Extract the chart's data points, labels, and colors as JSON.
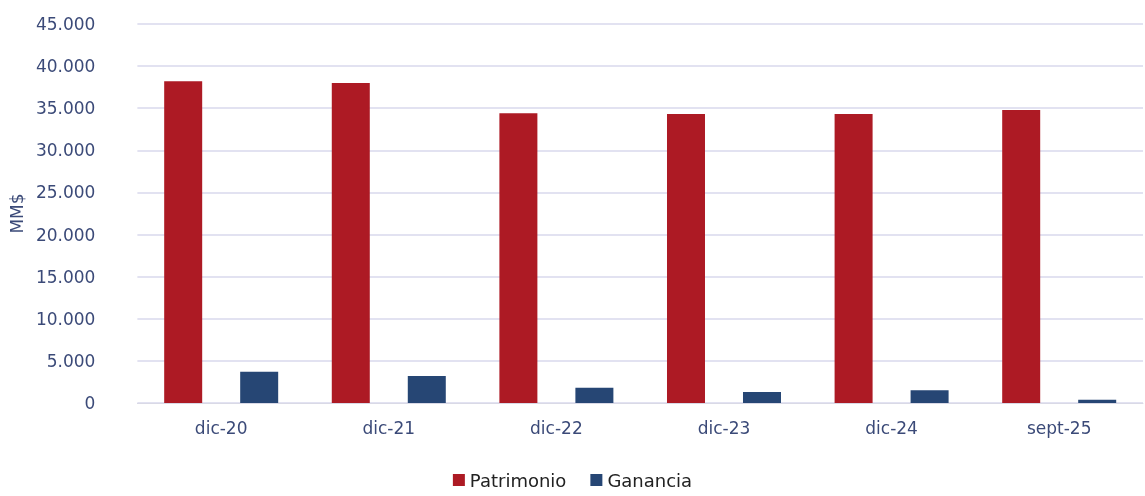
{
  "chart_data": {
    "type": "bar",
    "ylabel": "MM$",
    "categories": [
      "dic-20",
      "dic-21",
      "dic-22",
      "dic-23",
      "dic-24",
      "sept-25"
    ],
    "series": [
      {
        "name": "Patrimonio",
        "color": "#ad1a24",
        "values": [
          38200,
          38000,
          34400,
          34300,
          34300,
          34800
        ]
      },
      {
        "name": "Ganancia",
        "color": "#264674",
        "values": [
          3700,
          3200,
          1800,
          1300,
          1500,
          400
        ]
      }
    ],
    "ylim": [
      0,
      45000
    ],
    "yticks": [
      {
        "value": 0,
        "label": "0"
      },
      {
        "value": 5000,
        "label": "5.000"
      },
      {
        "value": 10000,
        "label": "10.000"
      },
      {
        "value": 15000,
        "label": "15.000"
      },
      {
        "value": 20000,
        "label": "20.000"
      },
      {
        "value": 25000,
        "label": "25.000"
      },
      {
        "value": 30000,
        "label": "30.000"
      },
      {
        "value": 35000,
        "label": "35.000"
      },
      {
        "value": 40000,
        "label": "40.000"
      },
      {
        "value": 45000,
        "label": "45.000"
      }
    ],
    "grid": "y",
    "legend": "bottom"
  }
}
